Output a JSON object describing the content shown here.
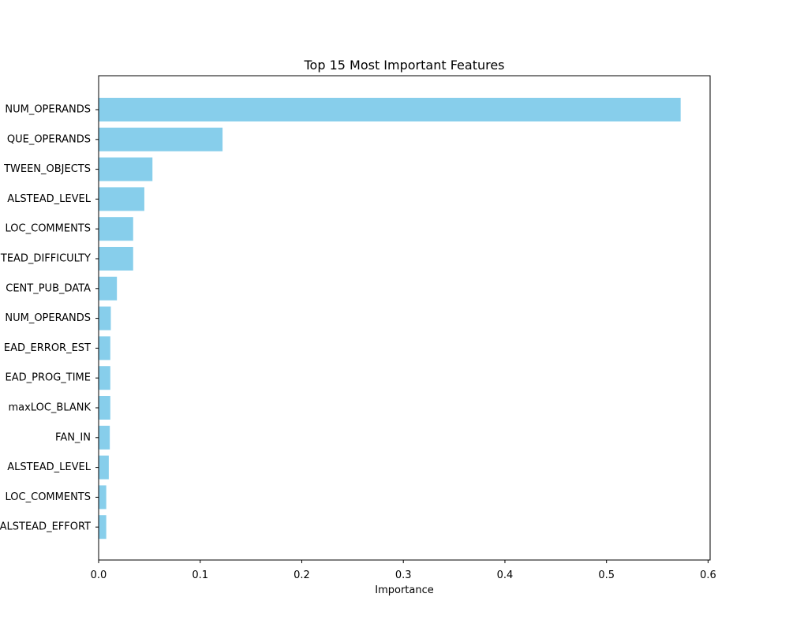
{
  "chart_data": {
    "type": "bar",
    "orientation": "horizontal",
    "title": "Top 15 Most Important Features",
    "xlabel": "Importance",
    "ylabel": "",
    "xlim": [
      0,
      0.602
    ],
    "xticks": [
      0.0,
      0.1,
      0.2,
      0.3,
      0.4,
      0.5,
      0.6
    ],
    "xtick_labels": [
      "0.0",
      "0.1",
      "0.2",
      "0.3",
      "0.4",
      "0.5",
      "0.6"
    ],
    "bar_color": "#87ceeb",
    "grid": false,
    "legend": "none",
    "categories": [
      "NUM_OPERANDS",
      "QUE_OPERANDS",
      "TWEEN_OBJECTS",
      "ALSTEAD_LEVEL",
      "LOC_COMMENTS",
      "TEAD_DIFFICULTY",
      "CENT_PUB_DATA",
      "NUM_OPERANDS",
      "EAD_ERROR_EST",
      "EAD_PROG_TIME",
      "maxLOC_BLANK",
      "FAN_IN",
      "ALSTEAD_LEVEL",
      "LOC_COMMENTS",
      "ALSTEAD_EFFORT"
    ],
    "values": [
      0.573,
      0.122,
      0.053,
      0.045,
      0.034,
      0.034,
      0.018,
      0.012,
      0.0115,
      0.0115,
      0.0115,
      0.011,
      0.01,
      0.0075,
      0.0075
    ]
  }
}
